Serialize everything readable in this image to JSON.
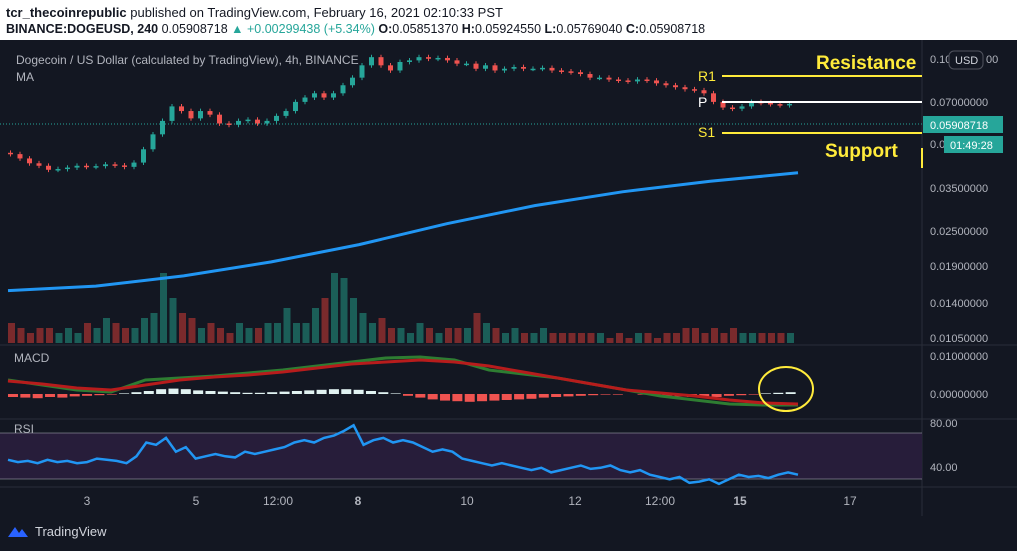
{
  "header": {
    "author": "tcr_thecoinrepublic",
    "published": "published on TradingView.com, February 16, 2021 02:10:33 PST",
    "symbol": "BINANCE:DOGEUSD, 240",
    "price": "0.05908718",
    "change": "▲ +0.00299438 (+5.34%)",
    "o_label": "O:",
    "o": "0.05851370",
    "h_label": "H:",
    "h": "0.05924550",
    "l_label": "L:",
    "l": "0.05769040",
    "c_label": "C:",
    "c": "0.05908718"
  },
  "legend": {
    "title": "Dogecoin / US Dollar (calculated by TradingView), 4h, BINANCE",
    "ma": "MA"
  },
  "currency_button": "USD",
  "annotations": {
    "resistance": "Resistance",
    "support": "Support",
    "r1": "R1",
    "p": "P",
    "s1": "S1",
    "resistance_color": "#ffeb3b",
    "support_color": "#ffeb3b"
  },
  "price_labels": {
    "current": "0.05908718",
    "countdown": "01:49:28",
    "top_partial": "0.10",
    "top_partial_suffix": "00",
    "s1_partial": "0.0"
  },
  "chart_data": {
    "type": "candlestick",
    "price_axis": [
      "0.07000000",
      "0.05908718",
      "0.03500000",
      "0.02500000",
      "0.01900000",
      "0.01400000",
      "0.01050000"
    ],
    "time_axis": [
      "3",
      "5",
      "12:00",
      "8",
      "10",
      "12",
      "12:00",
      "15",
      "17"
    ],
    "time_axis_bold": [
      "8",
      "15"
    ],
    "macd": {
      "label": "MACD",
      "ticks": [
        "0.01000000",
        "0.00000000"
      ]
    },
    "rsi": {
      "label": "RSI",
      "ticks": [
        "80.00",
        "40.00"
      ]
    },
    "colors": {
      "up": "#26a69a",
      "down": "#ef5350",
      "ma": "#2196f3",
      "macd_line": "#2e7d32",
      "signal_line": "#b71c1c",
      "rsi": "#2196f3"
    },
    "candles_seed": [
      0.0405,
      0.0392,
      0.0378,
      0.0371,
      0.036,
      0.0362,
      0.0366,
      0.0371,
      0.0368,
      0.037,
      0.0375,
      0.0372,
      0.0368,
      0.038,
      0.042,
      0.047,
      0.052,
      0.058,
      0.056,
      0.053,
      0.056,
      0.0545,
      0.051,
      0.0505,
      0.052,
      0.0525,
      0.051,
      0.052,
      0.054,
      0.056,
      0.06,
      0.062,
      0.064,
      0.062,
      0.064,
      0.068,
      0.072,
      0.079,
      0.084,
      0.079,
      0.076,
      0.081,
      0.082,
      0.084,
      0.083,
      0.0835,
      0.082,
      0.08,
      0.08,
      0.077,
      0.079,
      0.076,
      0.077,
      0.078,
      0.077,
      0.077,
      0.0775,
      0.076,
      0.0755,
      0.075,
      0.074,
      0.072,
      0.072,
      0.071,
      0.0705,
      0.07,
      0.071,
      0.0705,
      0.069,
      0.068,
      0.067,
      0.066,
      0.0655,
      0.064,
      0.06,
      0.0575,
      0.057,
      0.058,
      0.06,
      0.0595,
      0.059,
      0.0585,
      0.0591
    ],
    "ma_series": [
      0.0145,
      0.015,
      0.0162,
      0.018,
      0.0205,
      0.024,
      0.0275,
      0.0305,
      0.033,
      0.0352
    ],
    "volume_seed": [
      4,
      3,
      2,
      3,
      3,
      2,
      3,
      2,
      4,
      3,
      5,
      4,
      3,
      3,
      5,
      6,
      14,
      9,
      6,
      5,
      3,
      4,
      3,
      2,
      4,
      3,
      3,
      4,
      4,
      7,
      4,
      4,
      7,
      9,
      14,
      13,
      9,
      6,
      4,
      5,
      3,
      3,
      2,
      4,
      3,
      2,
      3,
      3,
      3,
      6,
      4,
      3,
      2,
      3,
      2,
      2,
      3,
      2,
      2,
      2,
      2,
      2,
      2,
      1,
      2,
      1,
      2,
      2,
      1,
      2,
      2,
      3,
      3,
      2,
      3,
      2,
      3,
      2,
      2,
      2,
      2,
      2,
      2
    ],
    "rsi_series": [
      55,
      53,
      54,
      52,
      55,
      53,
      54,
      52,
      53,
      56,
      55,
      54,
      52,
      58,
      70,
      68,
      74,
      62,
      66,
      56,
      58,
      60,
      58,
      57,
      62,
      60,
      62,
      64,
      66,
      70,
      72,
      70,
      74,
      76,
      80,
      85,
      68,
      72,
      74,
      70,
      72,
      70,
      66,
      62,
      64,
      62,
      56,
      54,
      52,
      50,
      52,
      50,
      48,
      46,
      48,
      44,
      46,
      48,
      50,
      47,
      48,
      50,
      46,
      44,
      46,
      42,
      40,
      38,
      40,
      35,
      36,
      38,
      34,
      38,
      42,
      40,
      41,
      39,
      42,
      44,
      42
    ],
    "macd_hist_seed": [
      -0.5,
      -0.6,
      -0.7,
      -0.5,
      -0.6,
      -0.4,
      -0.3,
      -0.2,
      -0.1,
      0.1,
      0.3,
      0.5,
      0.8,
      0.9,
      0.8,
      0.6,
      0.5,
      0.4,
      0.3,
      0.2,
      0.2,
      0.3,
      0.4,
      0.5,
      0.6,
      0.7,
      0.8,
      0.8,
      0.7,
      0.5,
      0.3,
      0.1,
      -0.3,
      -0.6,
      -0.9,
      -1.1,
      -1.2,
      -1.3,
      -1.2,
      -1.1,
      -1.0,
      -0.9,
      -0.8,
      -0.6,
      -0.5,
      -0.4,
      -0.3,
      -0.2,
      -0.1,
      -0.1,
      0,
      -0.1,
      -0.2,
      -0.3,
      -0.4,
      -0.5,
      -0.6,
      -0.5,
      -0.3,
      -0.2,
      -0.1,
      0.1,
      0.2,
      0.3
    ]
  }
}
